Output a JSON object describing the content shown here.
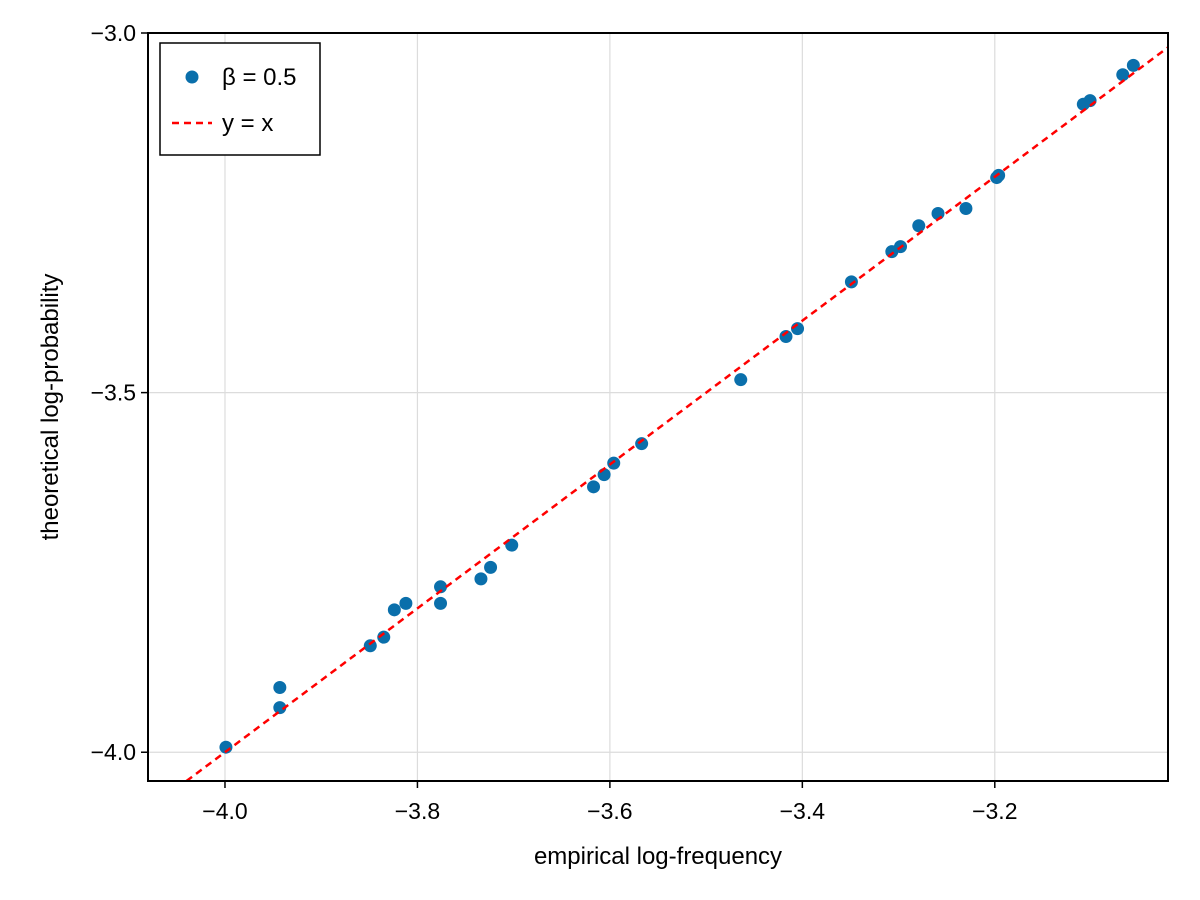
{
  "colors": {
    "series": "#0a6fab",
    "reference": "#ff0000",
    "grid": "#dcdcdc",
    "frame": "#000000",
    "background": "#ffffff"
  },
  "chart_data": {
    "type": "scatter",
    "title": "",
    "xlabel": "empirical log-frequency",
    "ylabel": "theoretical log-probability",
    "xlim": [
      -4.08,
      -3.02
    ],
    "ylim": [
      -4.04,
      -3.0
    ],
    "xticks": [
      -4.0,
      -3.8,
      -3.6,
      -3.4,
      -3.2
    ],
    "xtick_labels": [
      "−4.0",
      "−3.8",
      "−3.6",
      "−3.4",
      "−3.2"
    ],
    "yticks": [
      -4.0,
      -3.5,
      -3.0
    ],
    "ytick_labels": [
      "−4.0",
      "−3.5",
      "−3.0"
    ],
    "grid": true,
    "legend_position": "top-left",
    "series": [
      {
        "name": "β = 0.5",
        "kind": "scatter",
        "points": [
          [
            -3.999,
            -3.993
          ],
          [
            -3.943,
            -3.91
          ],
          [
            -3.943,
            -3.938
          ],
          [
            -3.849,
            -3.852
          ],
          [
            -3.835,
            -3.84
          ],
          [
            -3.824,
            -3.802
          ],
          [
            -3.812,
            -3.793
          ],
          [
            -3.776,
            -3.77
          ],
          [
            -3.776,
            -3.793
          ],
          [
            -3.734,
            -3.759
          ],
          [
            -3.724,
            -3.743
          ],
          [
            -3.702,
            -3.712
          ],
          [
            -3.617,
            -3.631
          ],
          [
            -3.606,
            -3.614
          ],
          [
            -3.596,
            -3.598
          ],
          [
            -3.567,
            -3.571
          ],
          [
            -3.464,
            -3.482
          ],
          [
            -3.417,
            -3.422
          ],
          [
            -3.405,
            -3.411
          ],
          [
            -3.349,
            -3.346
          ],
          [
            -3.307,
            -3.304
          ],
          [
            -3.298,
            -3.297
          ],
          [
            -3.279,
            -3.268
          ],
          [
            -3.259,
            -3.251
          ],
          [
            -3.23,
            -3.244
          ],
          [
            -3.198,
            -3.201
          ],
          [
            -3.196,
            -3.198
          ],
          [
            -3.108,
            -3.099
          ],
          [
            -3.101,
            -3.094
          ],
          [
            -3.067,
            -3.058
          ],
          [
            -3.056,
            -3.045
          ]
        ]
      },
      {
        "name": "y = x",
        "kind": "line",
        "style": "dashed",
        "points": [
          [
            -4.08,
            -4.08
          ],
          [
            -3.0,
            -3.0
          ]
        ]
      }
    ]
  }
}
